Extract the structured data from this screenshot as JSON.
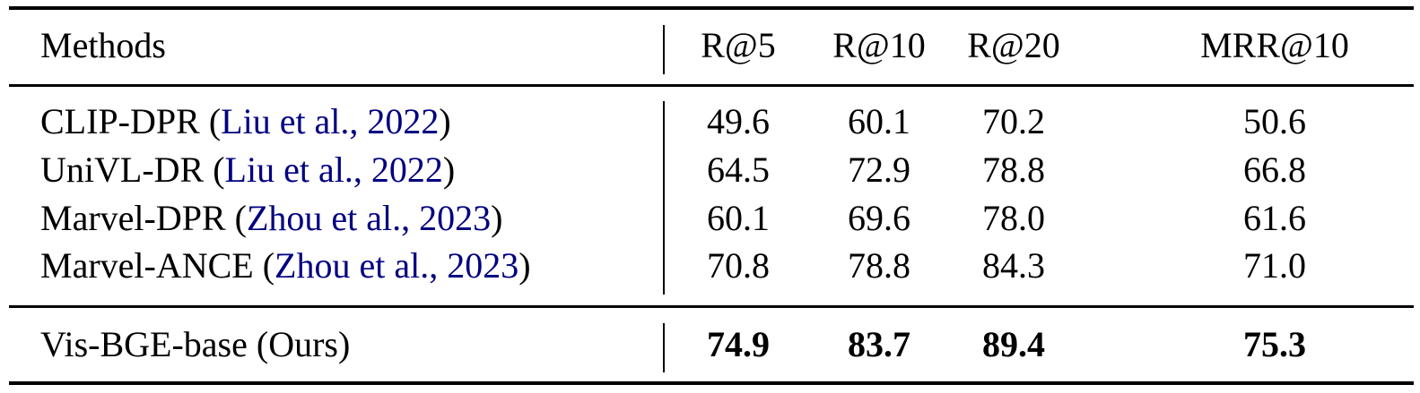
{
  "table": {
    "headers": [
      "Methods",
      "R@5",
      "R@10",
      "R@20",
      "MRR@10"
    ],
    "baselines": [
      {
        "method": "CLIP-DPR",
        "citation": "Liu et al., 2022",
        "values": [
          "49.6",
          "60.1",
          "70.2",
          "50.6"
        ]
      },
      {
        "method": "UniVL-DR",
        "citation": "Liu et al., 2022",
        "values": [
          "64.5",
          "72.9",
          "78.8",
          "66.8"
        ]
      },
      {
        "method": "Marvel-DPR",
        "citation": "Zhou et al., 2023",
        "values": [
          "60.1",
          "69.6",
          "78.0",
          "61.6"
        ]
      },
      {
        "method": "Marvel-ANCE",
        "citation": "Zhou et al., 2023",
        "values": [
          "70.8",
          "78.8",
          "84.3",
          "71.0"
        ]
      }
    ],
    "ours": {
      "method": "Vis-BGE-base (Ours)",
      "values": [
        "74.9",
        "83.7",
        "89.4",
        "75.3"
      ]
    },
    "citation_color": "#000080"
  }
}
